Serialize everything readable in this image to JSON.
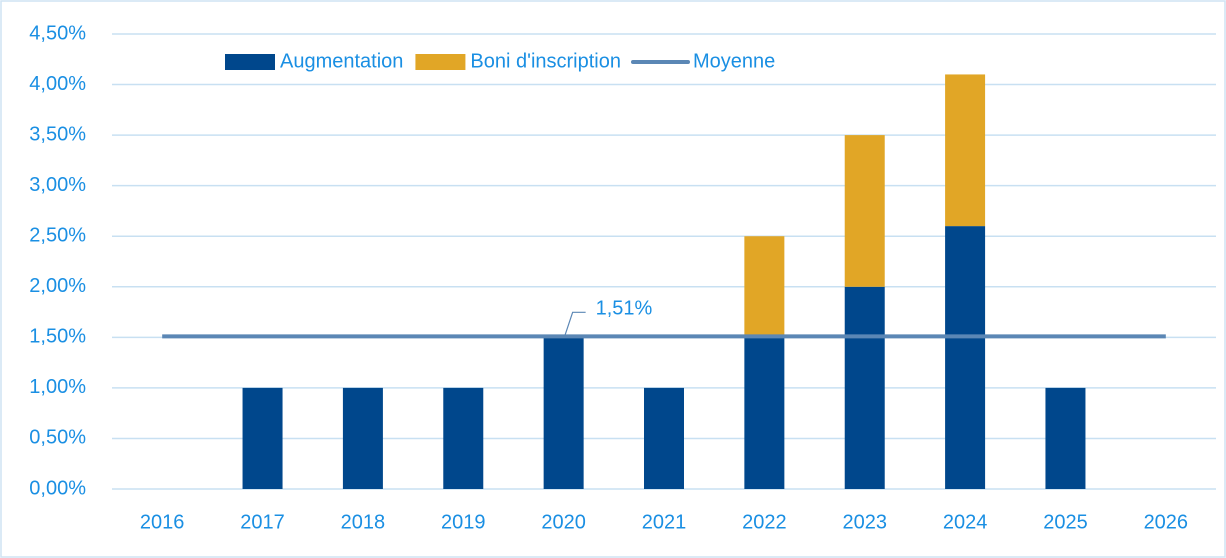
{
  "chart_data": {
    "type": "bar",
    "stacked": true,
    "categories": [
      "2016",
      "2017",
      "2018",
      "2019",
      "2020",
      "2021",
      "2022",
      "2023",
      "2024",
      "2025",
      "2026"
    ],
    "series": [
      {
        "name": "Augmentation",
        "color": "#00478c",
        "values": [
          0,
          1,
          1,
          1,
          1.5,
          1,
          1.5,
          2,
          2.6,
          1,
          0
        ]
      },
      {
        "name": "Boni d'inscription",
        "color": "#e1a626",
        "values": [
          0,
          0,
          0,
          0,
          0,
          0,
          1,
          1.5,
          1.5,
          0,
          0
        ]
      },
      {
        "name": "Moyenne",
        "type": "line",
        "color": "#5b87b5",
        "values": [
          1.51,
          1.51,
          1.51,
          1.51,
          1.51,
          1.51,
          1.51,
          1.51,
          1.51,
          1.51,
          1.51
        ],
        "value_labels": [
          null,
          null,
          null,
          null,
          "1,51%",
          null,
          null,
          null,
          null,
          null,
          null
        ]
      }
    ],
    "ylim": [
      0,
      4.5
    ],
    "yticks": [
      {
        "value": 0,
        "label": "0,00%"
      },
      {
        "value": 0.5,
        "label": "0,50%"
      },
      {
        "value": 1,
        "label": "1,00%"
      },
      {
        "value": 1.5,
        "label": "1,50%"
      },
      {
        "value": 2,
        "label": "2,00%"
      },
      {
        "value": 2.5,
        "label": "2,50%"
      },
      {
        "value": 3,
        "label": "3,00%"
      },
      {
        "value": 3.5,
        "label": "3,50%"
      },
      {
        "value": 4,
        "label": "4,00%"
      },
      {
        "value": 4.5,
        "label": "4,50%"
      }
    ],
    "grid": true,
    "legend": "top"
  }
}
